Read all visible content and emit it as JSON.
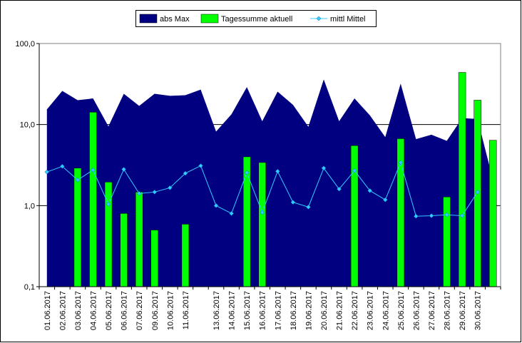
{
  "chart_data": {
    "type": "combo",
    "categories": [
      "01.06.2017",
      "02.06.2017",
      "03.06.2017",
      "04.06.2017",
      "05.06.2017",
      "06.06.2017",
      "07.06.2017",
      "09.06.2017",
      "10.06.2017",
      "11.06.2017",
      null,
      "13.06.2017",
      "14.06.2017",
      "15.06.2017",
      "16.06.2017",
      "17.06.2017",
      "18.06.2017",
      "19.06.2017",
      "20.06.2017",
      "21.06.2017",
      "22.06.2017",
      "23.06.2017",
      "24.06.2017",
      "25.06.2017",
      "26.06.2017",
      "27.06.2017",
      "28.06.2017",
      "29.06.2017",
      "30.06.2017",
      null
    ],
    "series": [
      {
        "name": "abs Max",
        "kind": "area",
        "color": "#000080",
        "values": [
          15.4,
          26,
          20,
          21,
          9.5,
          24,
          17,
          24,
          22.6,
          23,
          27,
          8.2,
          13.4,
          29,
          11,
          25.5,
          17.5,
          9.4,
          36,
          11,
          21,
          13,
          7,
          32,
          6.6,
          7.5,
          6.3,
          12,
          11.7,
          2.1
        ]
      },
      {
        "name": "Tagessumme aktuell",
        "kind": "bar",
        "color": "#00ff00",
        "values": [
          null,
          null,
          2.9,
          14.2,
          1.95,
          0.8,
          1.47,
          0.5,
          null,
          0.59,
          null,
          null,
          null,
          4.0,
          3.4,
          null,
          null,
          null,
          null,
          null,
          5.5,
          null,
          null,
          6.7,
          null,
          null,
          1.28,
          44,
          20,
          6.4
        ]
      },
      {
        "name": "mittl Mittel",
        "kind": "line",
        "color": "#33ccff",
        "values": [
          2.6,
          3.05,
          2.07,
          2.75,
          1.04,
          2.8,
          1.41,
          1.47,
          1.66,
          2.5,
          3.1,
          1.0,
          0.8,
          2.55,
          0.82,
          2.65,
          1.1,
          0.96,
          2.9,
          1.6,
          2.7,
          1.53,
          1.18,
          3.4,
          0.74,
          0.75,
          0.77,
          0.75,
          1.47,
          null
        ]
      }
    ],
    "log_y": true,
    "ylim": [
      0.1,
      100
    ],
    "yticks": [
      {
        "value": 0.1,
        "label": "0,1"
      },
      {
        "value": 1,
        "label": "1,0"
      },
      {
        "value": 10,
        "label": "10,0"
      },
      {
        "value": 100,
        "label": "100,0"
      }
    ],
    "grid": true,
    "legend": "top"
  }
}
